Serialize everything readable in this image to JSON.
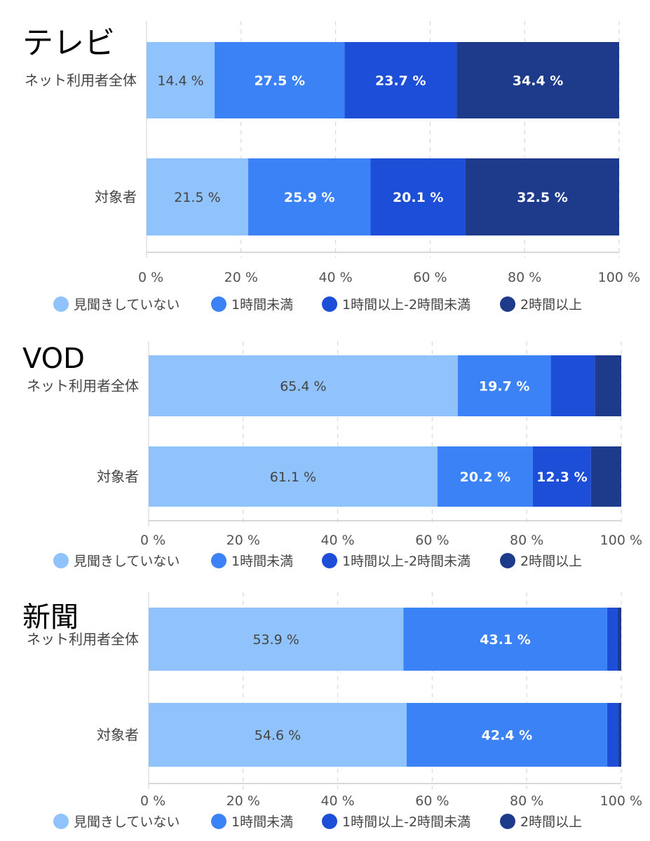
{
  "legend_colors": [
    "#90c2fb",
    "#3b82f6",
    "#1d4ed8",
    "#1e3a8a"
  ],
  "chart_data": [
    {
      "type": "bar",
      "orientation": "horizontal",
      "stacked": true,
      "title": "テレビ",
      "categories": [
        "ネット利用者全体",
        "対象者"
      ],
      "series": [
        {
          "name": "見聞きしていない",
          "values": [
            14.4,
            21.5
          ]
        },
        {
          "name": "1時間未満",
          "values": [
            27.5,
            25.9
          ]
        },
        {
          "name": "1時間以上-2時間未満",
          "values": [
            23.7,
            20.1
          ]
        },
        {
          "name": "2時間以上",
          "values": [
            34.4,
            32.5
          ]
        }
      ],
      "bar_labels": [
        [
          "14.4 %",
          "27.5 %",
          "23.7 %",
          "34.4 %"
        ],
        [
          "21.5 %",
          "25.9 %",
          "20.1 %",
          "32.5 %"
        ]
      ],
      "xlim": [
        0,
        100
      ],
      "xticks": [
        "0 %",
        "20 %",
        "40 %",
        "60 %",
        "80 %",
        "100 %"
      ],
      "grid": true,
      "legend_position": "bottom"
    },
    {
      "type": "bar",
      "orientation": "horizontal",
      "stacked": true,
      "title": "VOD",
      "categories": [
        "ネット利用者全体",
        "対象者"
      ],
      "series": [
        {
          "name": "見聞きしていない",
          "values": [
            65.4,
            61.1
          ]
        },
        {
          "name": "1時間未満",
          "values": [
            19.7,
            20.2
          ]
        },
        {
          "name": "1時間以上-2時間未満",
          "values": [
            9.3,
            12.3
          ]
        },
        {
          "name": "2時間以上",
          "values": [
            5.6,
            6.4
          ]
        }
      ],
      "bar_labels": [
        [
          "65.4 %",
          "19.7 %",
          "",
          ""
        ],
        [
          "61.1 %",
          "20.2 %",
          "12.3 %",
          ""
        ]
      ],
      "xlim": [
        0,
        100
      ],
      "xticks": [
        "0 %",
        "20 %",
        "40 %",
        "60 %",
        "80 %",
        "100 %"
      ],
      "grid": true,
      "legend_position": "bottom"
    },
    {
      "type": "bar",
      "orientation": "horizontal",
      "stacked": true,
      "title": "新聞",
      "categories": [
        "ネット利用者全体",
        "対象者"
      ],
      "series": [
        {
          "name": "見聞きしていない",
          "values": [
            53.9,
            54.6
          ]
        },
        {
          "name": "1時間未満",
          "values": [
            43.1,
            42.4
          ]
        },
        {
          "name": "1時間以上-2時間未満",
          "values": [
            2.2,
            2.4
          ]
        },
        {
          "name": "2時間以上",
          "values": [
            0.8,
            0.6
          ]
        }
      ],
      "bar_labels": [
        [
          "53.9 %",
          "43.1 %",
          "",
          ""
        ],
        [
          "54.6 %",
          "42.4 %",
          "",
          ""
        ]
      ],
      "xlim": [
        0,
        100
      ],
      "xticks": [
        "0 %",
        "20 %",
        "40 %",
        "60 %",
        "80 %",
        "100 %"
      ],
      "grid": true,
      "legend_position": "bottom"
    }
  ]
}
